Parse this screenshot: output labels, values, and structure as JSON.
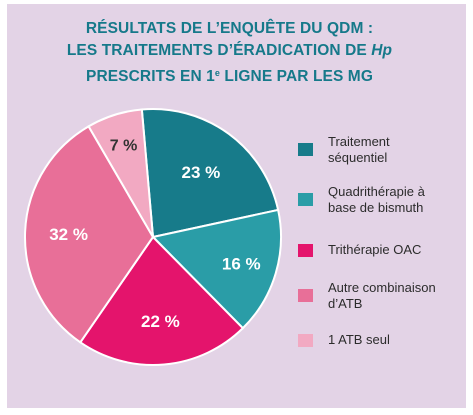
{
  "title": {
    "line1": "RÉSULTATS DE L’ENQUÊTE DU QDM :",
    "line2_prefix": "LES TRAITEMENTS D’ÉRADICATION DE ",
    "line2_italic": "Hp",
    "line3_prefix": "PRESCRITS EN 1",
    "line3_sup": "e",
    "line3_suffix": " LIGNE PAR LES MG"
  },
  "colors": {
    "background": "#e3d3e6",
    "title": "#16798a",
    "slice_labels": "#ffffff",
    "small_slice_label": "#333333"
  },
  "chart_data": {
    "type": "pie",
    "title": "RÉSULTATS DE L’ENQUÊTE DU QDM : LES TRAITEMENTS D’ÉRADICATION DE Hp PRESCRITS EN 1e LIGNE PAR LES MG",
    "start_angle_deg": -5,
    "direction": "clockwise",
    "legend_position": "right",
    "slices": [
      {
        "label": "Traitement séquentiel",
        "value": 23,
        "display": "23 %",
        "color": "#177b8a"
      },
      {
        "label": "Quadrithérapie à base de bismuth",
        "value": 16,
        "display": "16 %",
        "color": "#2a9da7"
      },
      {
        "label": "Trithérapie OAC",
        "value": 22,
        "display": "22 %",
        "color": "#e4146c"
      },
      {
        "label": "Autre combinaison d’ATB",
        "value": 32,
        "display": "32 %",
        "color": "#e86f98"
      },
      {
        "label": "1 ATB seul",
        "value": 7,
        "display": "7 %",
        "color": "#f2a9c2"
      }
    ]
  },
  "legend": {
    "items": [
      {
        "line1": "Traitement",
        "line2": "séquentiel",
        "color": "#177b8a"
      },
      {
        "line1": "Quadrithérapie à",
        "line2": "base de bismuth",
        "color": "#2a9da7"
      },
      {
        "line1": "Trithérapie OAC",
        "line2": "",
        "color": "#e4146c"
      },
      {
        "line1": "Autre combinaison",
        "line2": "d’ATB",
        "color": "#e86f98"
      },
      {
        "line1": "1 ATB seul",
        "line2": "",
        "color": "#f2a9c2"
      }
    ]
  }
}
